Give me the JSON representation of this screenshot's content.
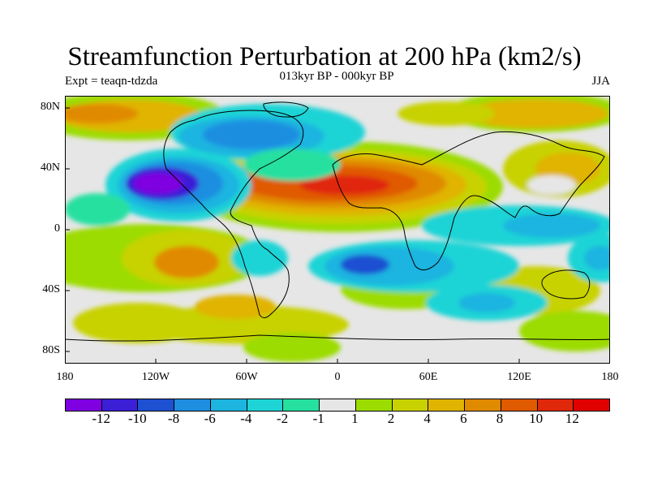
{
  "title": "Streamfunction Perturbation at 200 hPa (km2/s)",
  "subtitle": "013kyr BP - 000kyr BP",
  "left_label": "Expt = teaqn-tdzda",
  "right_label": "JJA",
  "map": {
    "y_ticks": [
      "80N",
      "40N",
      "0",
      "40S",
      "80S"
    ],
    "x_ticks": [
      "180",
      "120W",
      "60W",
      "0",
      "60E",
      "120E",
      "180"
    ]
  },
  "colorbar": {
    "colors": [
      "#7f00e0",
      "#3a1fd6",
      "#1e50d2",
      "#1e8ee0",
      "#1db4e0",
      "#1fd4d6",
      "#26e0a0",
      "#e6e6e6",
      "#9cdc00",
      "#c8d200",
      "#e0b400",
      "#e08a00",
      "#e05a00",
      "#e0280a",
      "#e00000"
    ],
    "labels": [
      "-12",
      "-10",
      "-8",
      "-6",
      "-4",
      "-2",
      "-1",
      "1",
      "2",
      "4",
      "6",
      "8",
      "10",
      "12"
    ]
  },
  "colors": {
    "neutral": "#e6e6e6",
    "coastline": "#000000"
  }
}
